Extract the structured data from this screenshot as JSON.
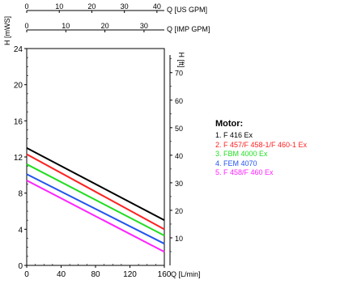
{
  "chart_data": {
    "type": "line",
    "top_axis_1": {
      "label": "Q [US GPM]",
      "ticks": [
        "0",
        "10",
        "20",
        "30",
        "40"
      ],
      "values": [
        0,
        10,
        20,
        30,
        40
      ]
    },
    "top_axis_2": {
      "label": "Q [IMP GPM]",
      "ticks": [
        "0",
        "10",
        "20",
        "30"
      ],
      "values": [
        0,
        10,
        20,
        30
      ]
    },
    "x": {
      "label": "Q [L/min]",
      "ticks": [
        "0",
        "40",
        "80",
        "120",
        "160"
      ],
      "min": 0,
      "max": 160
    },
    "y_left": {
      "label": "H [mWS]",
      "ticks": [
        "0",
        "4",
        "8",
        "12",
        "16",
        "20",
        "24"
      ],
      "min": 0,
      "max": 24
    },
    "y_right": {
      "label": "H [ft]",
      "ticks": [
        "10",
        "20",
        "30",
        "40",
        "50",
        "60",
        "70"
      ],
      "values": [
        10,
        20,
        30,
        40,
        50,
        60,
        70
      ]
    },
    "grid": true,
    "series": [
      {
        "name": "1. F 416 Ex",
        "color": "#000000",
        "points": [
          [
            0,
            13.0
          ],
          [
            160,
            5.0
          ]
        ]
      },
      {
        "name": "2. F 457/F 458-1/F 460-1 Ex",
        "color": "#ff2020",
        "points": [
          [
            0,
            12.3
          ],
          [
            160,
            4.0
          ]
        ]
      },
      {
        "name": "3. FBM 4000 Ex",
        "color": "#22dd22",
        "points": [
          [
            0,
            11.2
          ],
          [
            160,
            3.3
          ]
        ]
      },
      {
        "name": "4. FEM 4070",
        "color": "#2255ee",
        "points": [
          [
            0,
            10.1
          ],
          [
            160,
            2.4
          ]
        ]
      },
      {
        "name": "5. F 458/F 460 Ex",
        "color": "#ff22ff",
        "points": [
          [
            0,
            9.4
          ],
          [
            160,
            1.5
          ]
        ]
      }
    ]
  },
  "legend": {
    "title": "Motor:"
  }
}
